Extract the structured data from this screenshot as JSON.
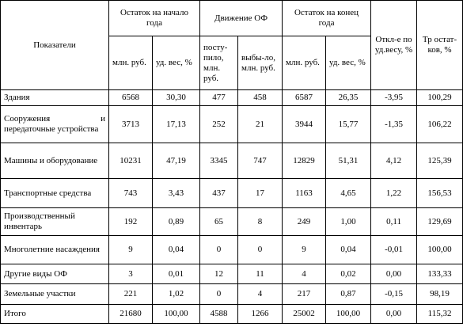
{
  "table": {
    "indicator": "Показатели",
    "groups": [
      "Остаток на начало года",
      "Движение ОФ",
      "Остаток на конец года",
      "Откл-е по уд.весу, %",
      "Тр остат-ков, %"
    ],
    "subheaders": [
      "млн. руб.",
      "уд. вес, %",
      "посту-пило, млн. руб.",
      "выбы-ло, млн. руб.",
      "млн. руб.",
      "уд. вес, %"
    ],
    "rows": [
      [
        "Здания",
        "6568",
        "30,30",
        "477",
        "458",
        "6587",
        "26,35",
        "-3,95",
        "100,29"
      ],
      [
        "Сооружения и передаточные устройства",
        "3713",
        "17,13",
        "252",
        "21",
        "3944",
        "15,77",
        "-1,35",
        "106,22"
      ],
      [
        "Машины и оборудование",
        "10231",
        "47,19",
        "3345",
        "747",
        "12829",
        "51,31",
        "4,12",
        "125,39"
      ],
      [
        "Транспортные средства",
        "743",
        "3,43",
        "437",
        "17",
        "1163",
        "4,65",
        "1,22",
        "156,53"
      ],
      [
        "Производственный инвентарь",
        "192",
        "0,89",
        "65",
        "8",
        "249",
        "1,00",
        "0,11",
        "129,69"
      ],
      [
        "Многолетние насаждения",
        "9",
        "0,04",
        "0",
        "0",
        "9",
        "0,04",
        "-0,01",
        "100,00"
      ],
      [
        "Другие виды ОФ",
        "3",
        "0,01",
        "12",
        "11",
        "4",
        "0,02",
        "0,00",
        "133,33"
      ],
      [
        "Земельные участки",
        "221",
        "1,02",
        "0",
        "4",
        "217",
        "0,87",
        "-0,15",
        "98,19"
      ],
      [
        "Итого",
        "21680",
        "100,00",
        "4588",
        "1266",
        "25002",
        "100,00",
        "0,00",
        "115,32"
      ]
    ]
  }
}
